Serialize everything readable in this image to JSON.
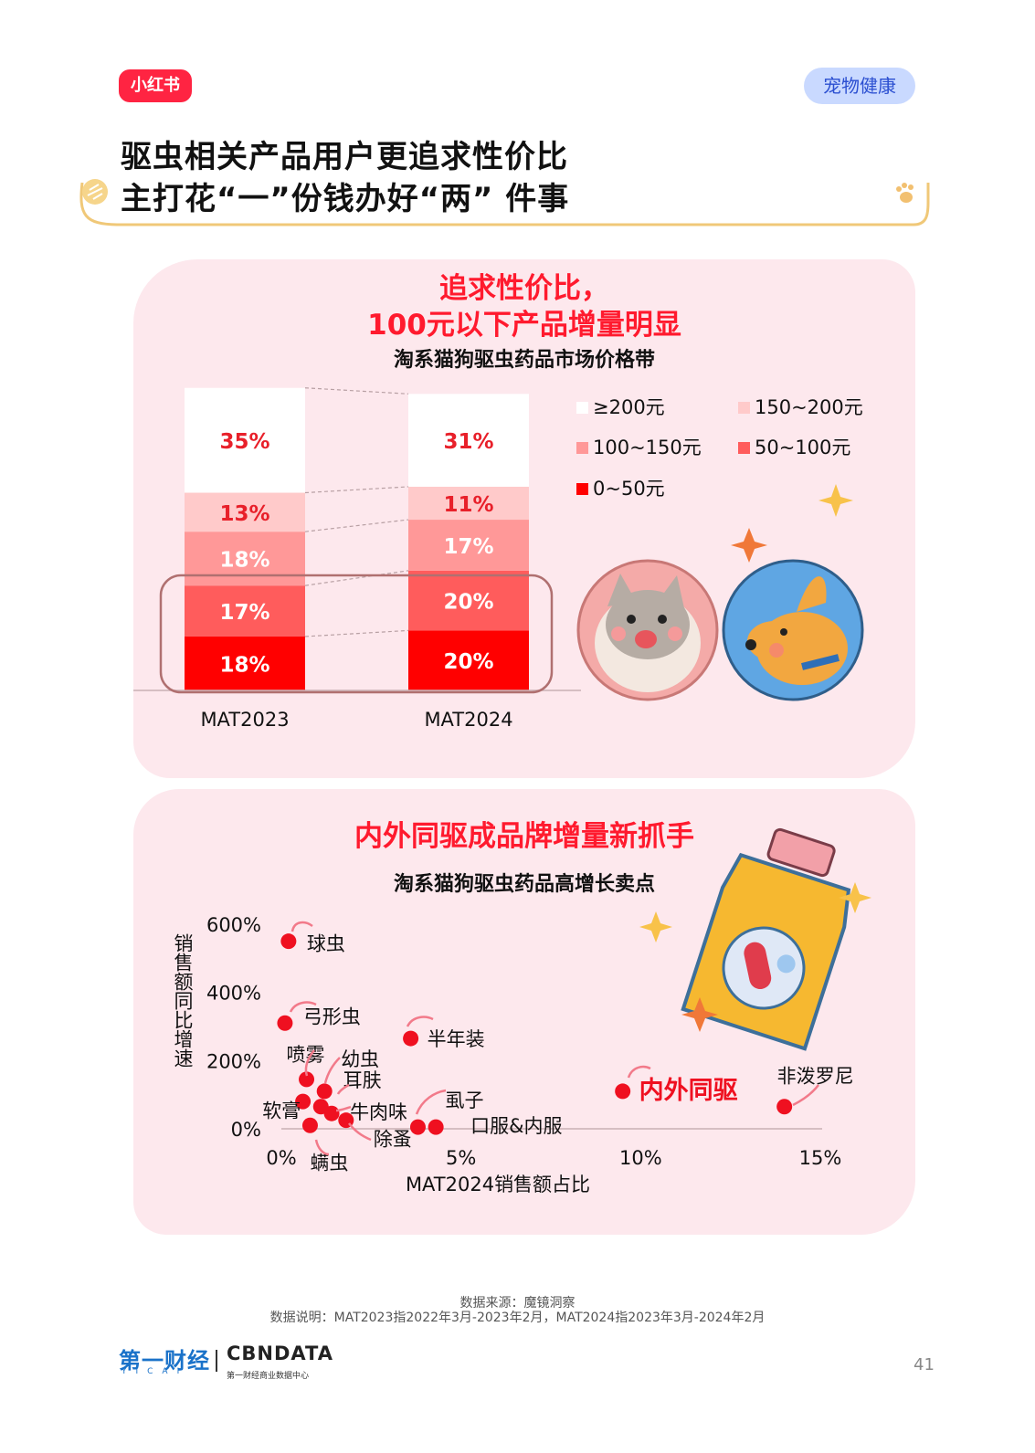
{
  "header": {
    "logo_text": "小红书",
    "tag": "宠物健康"
  },
  "title": {
    "line1": "驱虫相关产品用户更追求性价比",
    "line2": "主打花“一”份钱办好“两” 件事"
  },
  "section1": {
    "headline_line1": "追求性价比，",
    "headline_line2": "100元以下产品增量明显",
    "subtitle": "淘系猫狗驱虫药品市场价格带"
  },
  "section2": {
    "headline": "内外同驱成品牌增量新抓手",
    "subtitle": "淘系猫狗驱虫药品高增长卖点"
  },
  "chart_data": [
    {
      "type": "bar",
      "stacked": true,
      "categories": [
        "MAT2023",
        "MAT2024"
      ],
      "series": [
        {
          "name": "0~50元",
          "values": [
            18,
            20
          ],
          "labels": [
            "18%",
            "20%"
          ],
          "color": "#ff0000"
        },
        {
          "name": "50~100元",
          "values": [
            17,
            20
          ],
          "labels": [
            "17%",
            "20%"
          ],
          "color": "#ff5c5c"
        },
        {
          "name": "100~150元",
          "values": [
            18,
            17
          ],
          "labels": [
            "18%",
            "17%"
          ],
          "color": "#ff9898"
        },
        {
          "name": "150~200元",
          "values": [
            13,
            11
          ],
          "labels": [
            "13%",
            "11%"
          ],
          "color": "#ffcaca"
        },
        {
          "name": "≥200元",
          "values": [
            35,
            31
          ],
          "labels": [
            "35%",
            "31%"
          ],
          "color": "#ffffff"
        }
      ],
      "legend_order": [
        "≥200元",
        "150~200元",
        "100~150元",
        "50~100元",
        "0~50元"
      ],
      "legend_position": "right"
    },
    {
      "type": "scatter",
      "xlabel": "MAT2024销售额占比",
      "ylabel": "销售额同比增速",
      "x_ticks": [
        "0%",
        "5%",
        "10%",
        "15%"
      ],
      "y_ticks": [
        "0%",
        "200%",
        "400%",
        "600%"
      ],
      "xlim": [
        0,
        15
      ],
      "ylim": [
        0,
        600
      ],
      "points": [
        {
          "label": "球虫",
          "x": 0.2,
          "y": 550
        },
        {
          "label": "弓形虫",
          "x": 0.1,
          "y": 310
        },
        {
          "label": "半年装",
          "x": 3.6,
          "y": 265
        },
        {
          "label": "喷雾",
          "x": 0.7,
          "y": 145
        },
        {
          "label": "幼虫",
          "x": 1.2,
          "y": 110
        },
        {
          "label": "耳肤",
          "x": 0.6,
          "y": 80
        },
        {
          "label": "软膏",
          "x": 1.1,
          "y": 65
        },
        {
          "label": "牛肉味",
          "x": 1.4,
          "y": 45
        },
        {
          "label": "螨虫",
          "x": 0.8,
          "y": 10
        },
        {
          "label": "除蚤",
          "x": 1.8,
          "y": 25
        },
        {
          "label": "虱子",
          "x": 3.8,
          "y": 5
        },
        {
          "label": "口服&内服",
          "x": 4.3,
          "y": 5
        },
        {
          "label": "内外同驱",
          "x": 9.5,
          "y": 110,
          "highlight": true
        },
        {
          "label": "非泼罗尼",
          "x": 14.0,
          "y": 65
        }
      ]
    }
  ],
  "footer": {
    "source": "数据来源：魔镜洞察",
    "note": "数据说明：MAT2023指2022年3月-2023年2月，MAT2024指2023年3月-2024年2月",
    "brand1": "第一财经",
    "brand1_sub": "YICAI",
    "brand2": "CBNDATA",
    "brand2_sub": "第一财经商业数据中心",
    "page": "41"
  }
}
